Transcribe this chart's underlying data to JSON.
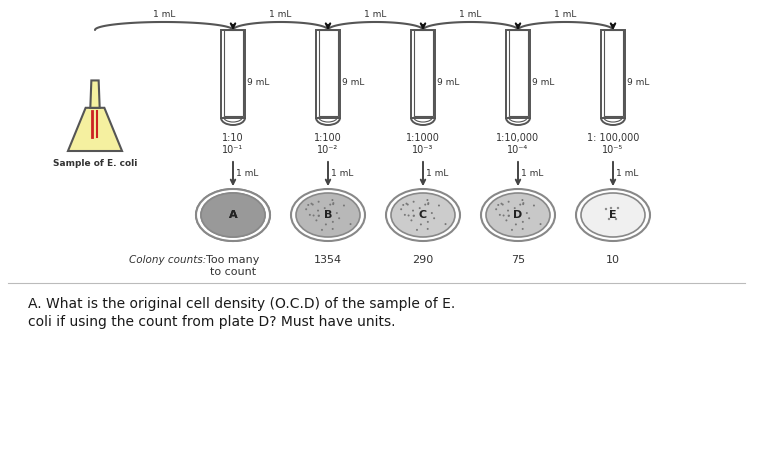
{
  "background_color": "#ffffff",
  "flask_label": "Sample of E. coli",
  "dilution_ratios": [
    "1:10",
    "1:100",
    "1:1000",
    "1:10,000",
    "1: 100,000"
  ],
  "dilution_exponents": [
    "10⁻¹",
    "10⁻²",
    "10⁻³",
    "10⁻⁴",
    "10⁻⁵"
  ],
  "plate_labels": [
    "A",
    "B",
    "C",
    "D",
    "E"
  ],
  "plate_fills": [
    "#a8a8a8",
    "#b8b8b8",
    "#cccccc",
    "#c8c8c8",
    "#f0f0f0"
  ],
  "plate_textures": [
    true,
    true,
    true,
    true,
    false
  ],
  "colony_counts_label": "Colony counts:",
  "counts": [
    "Too many\nto count",
    "1354",
    "290",
    "75",
    "10"
  ],
  "question_line1": "A. What is the original cell density (O.C.D) of the sample of E.",
  "question_line2": "coli if using the count from plate D? Must have units.",
  "tube_volume_label": "9 mL",
  "transfer_label": "1 mL",
  "line_color": "#555555",
  "text_color": "#333333",
  "flask_fill": "#f5f0a0",
  "flask_edge": "#555555"
}
